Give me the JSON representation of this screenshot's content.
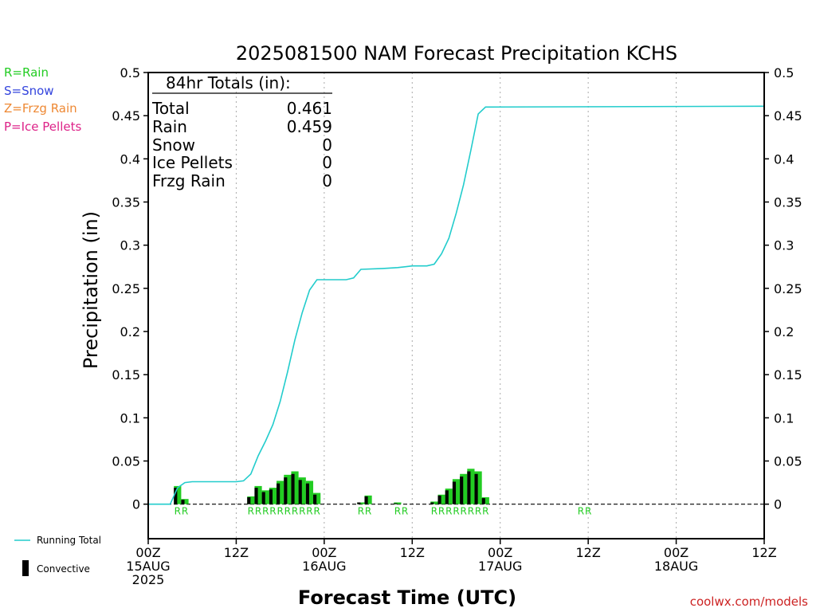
{
  "page": {
    "title": "2025081500 NAM Forecast Precipitation KCHS",
    "watermark": "coolwx.com/models"
  },
  "precip_key": [
    {
      "label": "R=Rain",
      "color": "#22cc22"
    },
    {
      "label": "S=Snow",
      "color": "#3344dd"
    },
    {
      "label": "Z=Frzg Rain",
      "color": "#ee8833"
    },
    {
      "label": "P=Ice Pellets",
      "color": "#dd2288"
    }
  ],
  "totals": {
    "heading": "84hr Totals (in):",
    "rows": [
      {
        "label": "Total",
        "value": "0.461"
      },
      {
        "label": "Rain",
        "value": "0.459"
      },
      {
        "label": "Snow",
        "value": "0"
      },
      {
        "label": "Ice Pellets",
        "value": "0"
      },
      {
        "label": "Frzg Rain",
        "value": "0"
      }
    ]
  },
  "legend": {
    "running_total": "Running Total",
    "convective": "Convective"
  },
  "colors": {
    "running_total": "#22cccc",
    "rain_bar": "#22cc22",
    "convective_bar": "#000000",
    "rain_code": "#22cc22",
    "grid": "#aaaaaa"
  },
  "chart_data": {
    "type": "bar",
    "xlabel": "Forecast Time (UTC)",
    "ylabel": "Precipitation (in)",
    "xlim": [
      0,
      84
    ],
    "ylim": [
      -0.04,
      0.5
    ],
    "yticks": [
      "0",
      "0.05",
      "0.1",
      "0.15",
      "0.2",
      "0.25",
      "0.3",
      "0.35",
      "0.4",
      "0.45",
      "0.5"
    ],
    "xticks": [
      {
        "hour": 0,
        "lines": [
          "00Z",
          "15AUG",
          "2025"
        ]
      },
      {
        "hour": 12,
        "lines": [
          "12Z"
        ]
      },
      {
        "hour": 24,
        "lines": [
          "00Z",
          "16AUG"
        ]
      },
      {
        "hour": 36,
        "lines": [
          "12Z"
        ]
      },
      {
        "hour": 48,
        "lines": [
          "00Z",
          "17AUG"
        ]
      },
      {
        "hour": 60,
        "lines": [
          "12Z"
        ]
      },
      {
        "hour": 72,
        "lines": [
          "00Z",
          "18AUG"
        ]
      },
      {
        "hour": 84,
        "lines": [
          "12Z"
        ]
      }
    ],
    "grid_hours": [
      12,
      24,
      36,
      48,
      60,
      72
    ],
    "series": [
      {
        "name": "Running Total",
        "kind": "line",
        "x": [
          0,
          3,
          4,
          5,
          6,
          7,
          8,
          12,
          13,
          14,
          15,
          16,
          17,
          18,
          19,
          20,
          21,
          22,
          23,
          24,
          27,
          28,
          29,
          32,
          34,
          36,
          38,
          39,
          40,
          41,
          42,
          43,
          44,
          45,
          46,
          47,
          84
        ],
        "y": [
          0,
          0,
          0.019,
          0.025,
          0.026,
          0.026,
          0.026,
          0.026,
          0.027,
          0.035,
          0.056,
          0.073,
          0.092,
          0.119,
          0.153,
          0.19,
          0.222,
          0.248,
          0.26,
          0.26,
          0.26,
          0.262,
          0.272,
          0.273,
          0.274,
          0.276,
          0.276,
          0.278,
          0.29,
          0.308,
          0.337,
          0.37,
          0.41,
          0.452,
          0.46,
          0.46,
          0.461
        ]
      },
      {
        "name": "Precipitation",
        "kind": "bar",
        "hours": [
          4,
          5,
          14,
          15,
          16,
          17,
          18,
          19,
          20,
          21,
          22,
          23,
          29,
          30,
          34,
          39,
          40,
          41,
          42,
          43,
          44,
          45,
          46
        ],
        "total": [
          0.021,
          0.006,
          0.009,
          0.021,
          0.016,
          0.019,
          0.027,
          0.034,
          0.038,
          0.031,
          0.027,
          0.013,
          0.002,
          0.01,
          0.002,
          0.003,
          0.011,
          0.018,
          0.029,
          0.035,
          0.041,
          0.038,
          0.008
        ],
        "convective": [
          0.019,
          0.005,
          0.008,
          0.019,
          0.014,
          0.017,
          0.024,
          0.031,
          0.035,
          0.028,
          0.024,
          0.011,
          0.002,
          0.009,
          0.001,
          0.002,
          0.01,
          0.016,
          0.026,
          0.032,
          0.038,
          0.035,
          0.007
        ]
      }
    ],
    "rain_codes": [
      {
        "hour": 4,
        "text": "R"
      },
      {
        "hour": 5,
        "text": "R"
      },
      {
        "hour": 14,
        "text": "R"
      },
      {
        "hour": 15,
        "text": "R"
      },
      {
        "hour": 16,
        "text": "R"
      },
      {
        "hour": 17,
        "text": "R"
      },
      {
        "hour": 18,
        "text": "R"
      },
      {
        "hour": 19,
        "text": "R"
      },
      {
        "hour": 20,
        "text": "R"
      },
      {
        "hour": 21,
        "text": "R"
      },
      {
        "hour": 22,
        "text": "R"
      },
      {
        "hour": 23,
        "text": "R"
      },
      {
        "hour": 29,
        "text": "R"
      },
      {
        "hour": 30,
        "text": "R"
      },
      {
        "hour": 34,
        "text": "R"
      },
      {
        "hour": 35,
        "text": "R"
      },
      {
        "hour": 39,
        "text": "R"
      },
      {
        "hour": 40,
        "text": "R"
      },
      {
        "hour": 41,
        "text": "R"
      },
      {
        "hour": 42,
        "text": "R"
      },
      {
        "hour": 43,
        "text": "R"
      },
      {
        "hour": 44,
        "text": "R"
      },
      {
        "hour": 45,
        "text": "R"
      },
      {
        "hour": 46,
        "text": "R"
      },
      {
        "hour": 59,
        "text": "R"
      },
      {
        "hour": 60,
        "text": "R"
      }
    ]
  }
}
